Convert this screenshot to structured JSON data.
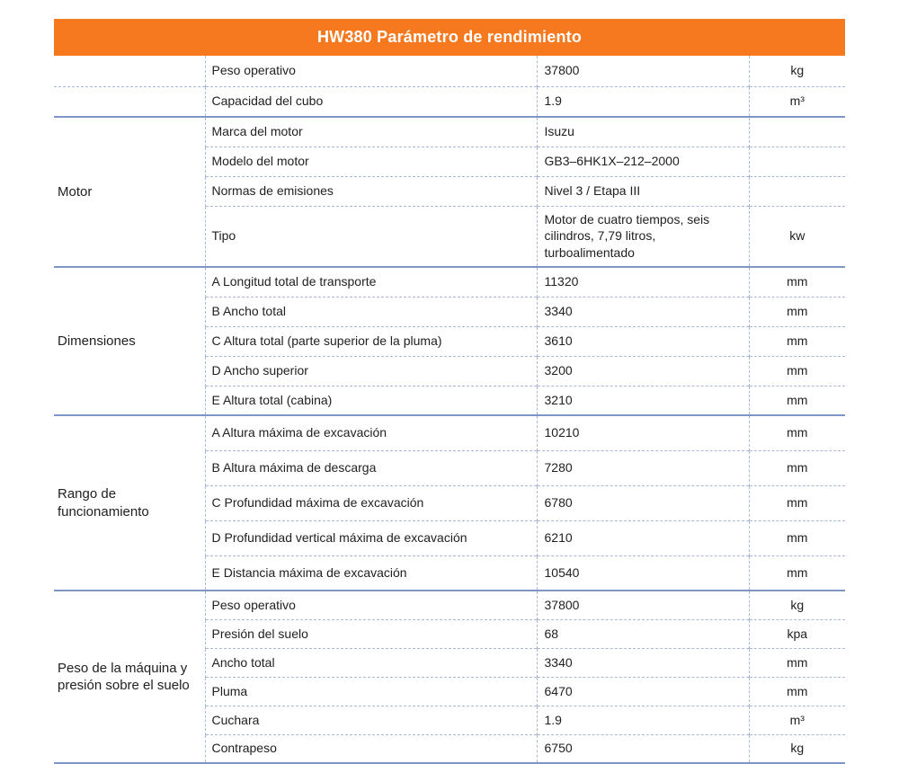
{
  "header": {
    "title": "HW380 Parámetro de rendimiento"
  },
  "colors": {
    "accent_orange": "#F6791F",
    "section_line_blue": "#7E95C8",
    "cell_line_dashed_blue": "#A9B7DA",
    "text": "#212121",
    "header_text": "#FFFFFF"
  },
  "table": {
    "sections": [
      {
        "label": "",
        "merged": false,
        "rows": [
          {
            "name": "Peso operativo",
            "value": "37800",
            "unit": "kg"
          },
          {
            "name": "Capacidad del cubo",
            "value": "1.9",
            "unit": "m³"
          }
        ]
      },
      {
        "label": "Motor",
        "merged": true,
        "rows": [
          {
            "name": "Marca del motor",
            "value": "Isuzu",
            "unit": ""
          },
          {
            "name": "Modelo del motor",
            "value": "GB3–6HK1X–212–2000",
            "unit": ""
          },
          {
            "name": "Normas de emisiones",
            "value": "Nivel 3 / Etapa III",
            "unit": ""
          },
          {
            "name": "Tipo",
            "value": "Motor de cuatro tiempos, seis cilindros, 7,79 litros, turboalimentado",
            "unit": "kw"
          }
        ]
      },
      {
        "label": "Dimensiones",
        "merged": true,
        "rows": [
          {
            "name": "A Longitud total de transporte",
            "value": "11320",
            "unit": "mm"
          },
          {
            "name": "B Ancho total",
            "value": "3340",
            "unit": "mm"
          },
          {
            "name": "C Altura total (parte superior de la pluma)",
            "value": "3610",
            "unit": "mm"
          },
          {
            "name": "D Ancho superior",
            "value": "3200",
            "unit": "mm"
          },
          {
            "name": "E Altura total (cabina)",
            "value": "3210",
            "unit": "mm"
          }
        ]
      },
      {
        "label": "Rango de funcionamiento",
        "merged": true,
        "rows": [
          {
            "name": "A Altura máxima de excavación",
            "value": "10210",
            "unit": "mm"
          },
          {
            "name": "B Altura máxima de descarga",
            "value": "7280",
            "unit": "mm"
          },
          {
            "name": "C Profundidad máxima de excavación",
            "value": "6780",
            "unit": "mm"
          },
          {
            "name": "D Profundidad vertical máxima de excavación",
            "value": "6210",
            "unit": "mm"
          },
          {
            "name": "E Distancia máxima de excavación",
            "value": "10540",
            "unit": "mm"
          }
        ]
      },
      {
        "label": "Peso de la máquina y presión sobre el suelo",
        "merged": true,
        "rows": [
          {
            "name": "Peso operativo",
            "value": "37800",
            "unit": "kg"
          },
          {
            "name": "Presión del suelo",
            "value": "68",
            "unit": "kpa"
          },
          {
            "name": "Ancho total",
            "value": "3340",
            "unit": "mm"
          },
          {
            "name": "Pluma",
            "value": "6470",
            "unit": "mm"
          },
          {
            "name": "Cuchara",
            "value": "1.9",
            "unit": "m³"
          },
          {
            "name": "Contrapeso",
            "value": "6750",
            "unit": "kg"
          }
        ]
      }
    ]
  }
}
